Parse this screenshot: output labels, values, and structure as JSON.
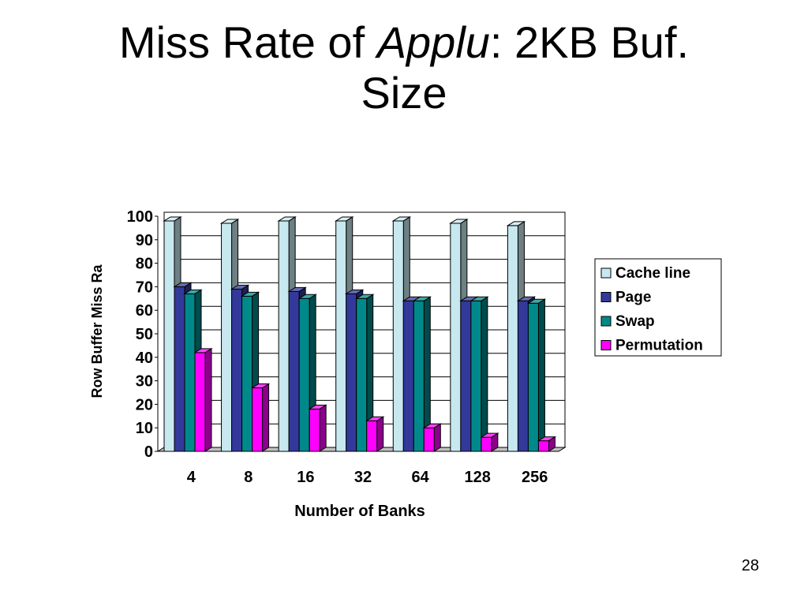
{
  "slide": {
    "title_part1": "Miss Rate of ",
    "title_italic": "Applu",
    "title_part2": ": 2KB Buf.",
    "title_line2": "Size",
    "page_number": "28"
  },
  "chart_data": {
    "type": "bar",
    "title": "",
    "xlabel": "Number of Banks",
    "ylabel": "Row Buffer Miss Ra",
    "categories": [
      "4",
      "8",
      "16",
      "32",
      "64",
      "128",
      "256"
    ],
    "ylim": [
      0,
      100
    ],
    "yticks": [
      0,
      10,
      20,
      30,
      40,
      50,
      60,
      70,
      80,
      90,
      100
    ],
    "grid": true,
    "legend_position": "right",
    "series": [
      {
        "name": "Cache line",
        "color": "#c8e8ef",
        "values": [
          98,
          97,
          98,
          98,
          98,
          97,
          96
        ]
      },
      {
        "name": "Page",
        "color": "#33399a",
        "values": [
          70,
          69,
          68,
          67,
          64,
          64,
          64
        ]
      },
      {
        "name": "Swap",
        "color": "#00898a",
        "values": [
          67,
          66,
          65,
          65,
          64,
          64,
          63
        ]
      },
      {
        "name": "Permutation",
        "color": "#ff00ff",
        "values": [
          42,
          27,
          18,
          13,
          10,
          6,
          4.5
        ]
      }
    ]
  }
}
